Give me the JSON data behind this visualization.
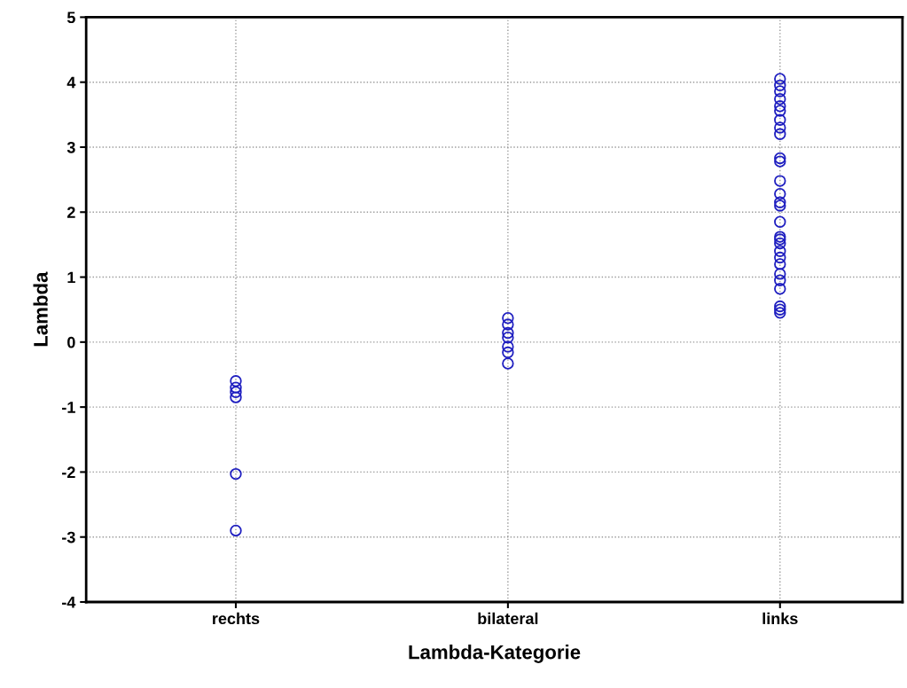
{
  "chart_data": {
    "type": "scatter",
    "xlabel": "Lambda-Kategorie",
    "ylabel": "Lambda",
    "categories": [
      "rechts",
      "bilateral",
      "links"
    ],
    "ylim": [
      -4,
      5
    ],
    "yticks": [
      -4,
      -3,
      -2,
      -1,
      0,
      1,
      2,
      3,
      4,
      5
    ],
    "grid": true,
    "marker": "circle",
    "series": [
      {
        "color": "#1f1fc0",
        "x": [
          "rechts",
          "rechts",
          "rechts",
          "rechts",
          "rechts",
          "rechts",
          "bilateral",
          "bilateral",
          "bilateral",
          "bilateral",
          "bilateral",
          "bilateral",
          "bilateral"
        ],
        "values": [
          -0.6,
          -0.7,
          -0.77,
          -0.85,
          -2.03,
          -2.9,
          0.37,
          0.27,
          0.14,
          0.07,
          -0.07,
          -0.16,
          -0.33
        ]
      },
      {
        "color": "#1f1fc0",
        "x": [
          "links",
          "links",
          "links",
          "links",
          "links",
          "links",
          "links",
          "links",
          "links",
          "links",
          "links",
          "links",
          "links",
          "links",
          "links",
          "links",
          "links",
          "links",
          "links",
          "links",
          "links",
          "links",
          "links",
          "links",
          "links",
          "links",
          "links",
          "links"
        ],
        "values": [
          4.05,
          3.95,
          3.86,
          3.74,
          3.63,
          3.56,
          3.42,
          3.3,
          3.2,
          2.83,
          2.78,
          2.48,
          2.28,
          2.15,
          2.1,
          1.85,
          1.62,
          1.58,
          1.52,
          1.4,
          1.3,
          1.2,
          1.05,
          0.95,
          0.82,
          0.55,
          0.5,
          0.45
        ]
      }
    ]
  }
}
